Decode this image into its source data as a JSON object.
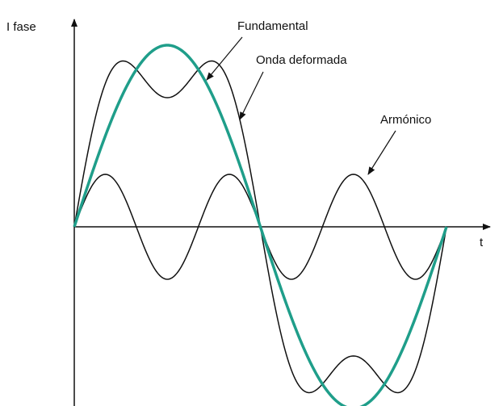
{
  "labels": {
    "y_axis": "I fase",
    "x_axis": "t",
    "fundamental": "Fundamental",
    "distorted": "Onda deformada",
    "harmonic": "Armónico"
  }
}
